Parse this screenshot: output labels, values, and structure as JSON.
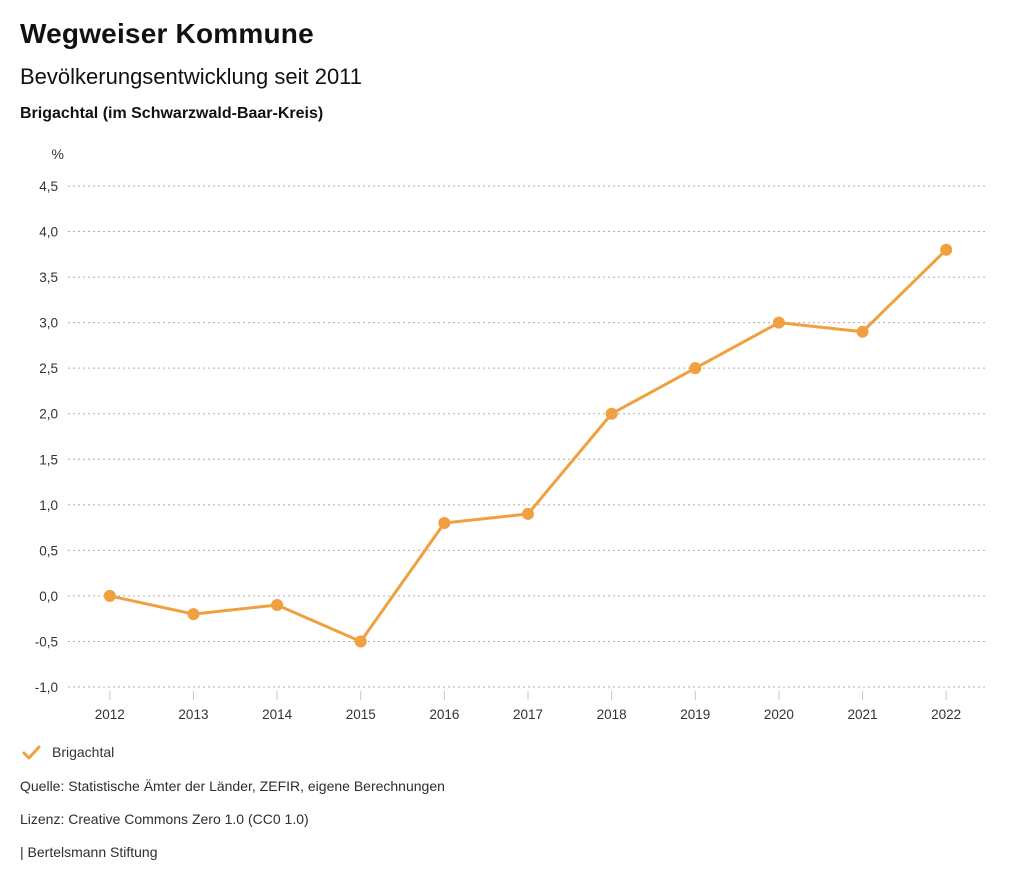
{
  "header": {
    "title": "Wegweiser Kommune",
    "subtitle": "Bevölkerungsentwicklung seit 2011",
    "region": "Brigachtal (im Schwarzwald-Baar-Kreis)"
  },
  "chart_data": {
    "type": "line",
    "title": "Bevölkerungsentwicklung seit 2011",
    "unit_label": "%",
    "categories": [
      "2012",
      "2013",
      "2014",
      "2015",
      "2016",
      "2017",
      "2018",
      "2019",
      "2020",
      "2021",
      "2022"
    ],
    "series": [
      {
        "name": "Brigachtal",
        "color": "#F0A03E",
        "values": [
          0.0,
          -0.2,
          -0.1,
          -0.5,
          0.8,
          0.9,
          2.0,
          2.5,
          3.0,
          2.9,
          3.8
        ]
      }
    ],
    "ylim": [
      -1.0,
      4.5
    ],
    "ytick_step": 0.5,
    "ytick_labels": [
      "4,5",
      "4,0",
      "3,5",
      "3,0",
      "2,5",
      "2,0",
      "1,5",
      "1,0",
      "0,5",
      "0,0",
      "-0,5",
      "-1,0"
    ],
    "ytick_values": [
      4.5,
      4.0,
      3.5,
      3.0,
      2.5,
      2.0,
      1.5,
      1.0,
      0.5,
      0.0,
      -0.5,
      -1.0
    ],
    "grid": "horizontal-dotted",
    "legend_position": "bottom-left",
    "colors": {
      "gridline": "#aeaeae",
      "tick": "#c6c6c6",
      "axis_text": "#333333"
    }
  },
  "legend": {
    "items": [
      {
        "label": "Brigachtal",
        "color": "#F0A03E",
        "icon": "check-icon"
      }
    ]
  },
  "footer": {
    "source": "Quelle: Statistische Ämter der Länder, ZEFIR, eigene Berechnungen",
    "license": "Lizenz: Creative Commons Zero 1.0 (CC0 1.0)",
    "attribution": "| Bertelsmann Stiftung"
  }
}
